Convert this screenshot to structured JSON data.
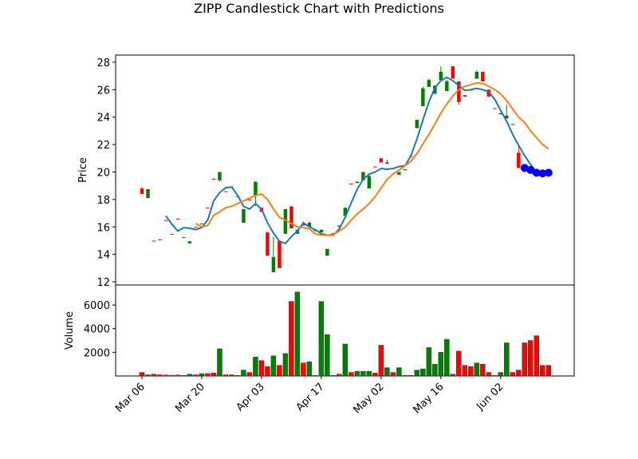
{
  "chart_data": {
    "type": "candlestick",
    "title": "ZIPP Candlestick Chart with Predictions",
    "ylabel": "Price",
    "volume_ylabel": "Volume",
    "categories": [
      "Mar 06",
      null,
      null,
      null,
      null,
      null,
      null,
      null,
      null,
      null,
      "Mar 20",
      null,
      null,
      null,
      null,
      null,
      null,
      null,
      null,
      null,
      "Apr 03",
      null,
      null,
      null,
      null,
      null,
      null,
      null,
      null,
      null,
      "Apr 17",
      null,
      null,
      null,
      null,
      null,
      null,
      null,
      null,
      null,
      "May 02",
      null,
      null,
      null,
      null,
      null,
      null,
      null,
      null,
      null,
      "May 16",
      null,
      null,
      null,
      null,
      null,
      null,
      null,
      null,
      null,
      "Jun 02",
      null,
      null,
      null,
      null,
      null,
      null,
      null,
      null
    ],
    "open": [
      18.8,
      18.1,
      15.0,
      15.1,
      16.5,
      15.5,
      16.6,
      15.2,
      14.8,
      16.0,
      16.2,
      17.4,
      19.5,
      19.4,
      18.6,
      18.9,
      18.2,
      16.3,
      18.0,
      18.3,
      17.4,
      15.6,
      12.7,
      15.0,
      15.5,
      17.5,
      15.5,
      16.2,
      16.0,
      15.7,
      15.6,
      13.9,
      15.5,
      16.1,
      16.8,
      19.15,
      19.2,
      19.4,
      18.8,
      20.4,
      21.0,
      20.6,
      20.3,
      19.8,
      20.2,
      21.15,
      23.2,
      24.8,
      26.2,
      25.7,
      26.7,
      25.9,
      27.7,
      26.6,
      25.6,
      26.0,
      26.8,
      27.3,
      26.0,
      24.65,
      24.2,
      23.9,
      23.5,
      21.4,
      null,
      null,
      null,
      null,
      null
    ],
    "high": [
      18.9,
      18.75,
      15.0,
      15.1,
      16.5,
      15.5,
      16.6,
      15.25,
      14.95,
      16.0,
      16.25,
      17.4,
      19.55,
      20.0,
      18.6,
      18.95,
      18.25,
      17.3,
      18.0,
      19.3,
      17.4,
      15.6,
      15.3,
      15.0,
      17.3,
      17.5,
      15.8,
      16.4,
      16.4,
      15.8,
      15.8,
      14.4,
      15.55,
      16.1,
      17.4,
      19.15,
      19.3,
      20.0,
      19.9,
      20.4,
      21.0,
      20.9,
      20.3,
      20.0,
      20.2,
      21.15,
      23.8,
      26.2,
      26.8,
      26.3,
      27.7,
      26.7,
      27.7,
      26.6,
      25.6,
      26.0,
      27.4,
      27.3,
      26.0,
      24.65,
      24.3,
      24.9,
      23.5,
      21.9,
      null,
      null,
      null,
      null,
      null
    ],
    "low": [
      18.4,
      18.1,
      14.95,
      15.05,
      16.45,
      15.45,
      16.55,
      15.2,
      14.8,
      15.95,
      16.2,
      17.35,
      19.45,
      19.3,
      18.55,
      18.9,
      18.2,
      16.3,
      17.95,
      17.5,
      17.1,
      13.9,
      12.7,
      13.0,
      15.5,
      15.9,
      15.5,
      16.1,
      16.0,
      15.7,
      15.6,
      13.9,
      15.5,
      16.0,
      16.8,
      19.1,
      19.2,
      19.4,
      18.8,
      20.35,
      20.7,
      20.6,
      20.25,
      19.8,
      20.15,
      21.1,
      23.2,
      24.8,
      26.2,
      25.7,
      26.7,
      25.9,
      26.8,
      24.9,
      25.5,
      25.95,
      26.8,
      26.6,
      25.5,
      24.6,
      24.2,
      23.9,
      23.45,
      20.3,
      null,
      null,
      null,
      null,
      null
    ],
    "close": [
      18.4,
      18.75,
      14.95,
      15.05,
      16.45,
      15.45,
      16.55,
      15.25,
      14.95,
      15.95,
      16.25,
      17.35,
      19.45,
      20.0,
      18.55,
      18.95,
      18.25,
      17.3,
      17.95,
      19.3,
      17.1,
      13.9,
      13.8,
      13.0,
      17.3,
      15.9,
      15.8,
      16.1,
      16.3,
      15.8,
      15.8,
      14.4,
      15.55,
      16.0,
      17.4,
      19.1,
      19.3,
      20.0,
      19.7,
      20.35,
      20.7,
      20.7,
      20.25,
      20.0,
      20.15,
      21.1,
      23.8,
      26.1,
      26.7,
      26.3,
      27.3,
      26.6,
      26.8,
      25.1,
      25.5,
      25.95,
      27.3,
      26.6,
      25.5,
      24.6,
      24.3,
      24.1,
      23.45,
      20.3,
      null,
      null,
      null,
      null,
      null
    ],
    "volume": [
      300,
      100,
      150,
      100,
      80,
      60,
      80,
      50,
      150,
      100,
      200,
      200,
      250,
      2300,
      100,
      100,
      50,
      500,
      300,
      1600,
      1300,
      800,
      1700,
      900,
      1900,
      6300,
      7100,
      1100,
      1200,
      50,
      6300,
      3500,
      50,
      150,
      2700,
      300,
      400,
      400,
      400,
      250,
      2600,
      700,
      300,
      700,
      50,
      50,
      500,
      600,
      2400,
      1000,
      2000,
      3100,
      150,
      2100,
      900,
      800,
      1100,
      1000,
      300,
      50,
      300,
      2800,
      300,
      500,
      2800,
      3000,
      3400,
      900,
      900
    ],
    "up_color": "#008000",
    "down_color": "#ff0000",
    "moving_averages": [
      {
        "color": "#1f77b4",
        "values": [
          null,
          null,
          null,
          null,
          16.8,
          16.2,
          15.7,
          15.95,
          15.9,
          15.8,
          15.95,
          16.5,
          17.9,
          18.5,
          18.85,
          18.9,
          18.3,
          17.5,
          17.3,
          17.7,
          17.3,
          16.3,
          15.55,
          14.95,
          14.8,
          15.3,
          15.7,
          16.3,
          16.0,
          15.8,
          15.5,
          15.4,
          15.4,
          15.85,
          16.7,
          17.75,
          18.75,
          19.45,
          19.85,
          20.0,
          20.25,
          20.2,
          20.25,
          20.4,
          20.45,
          21.2,
          22.4,
          23.8,
          25.1,
          26.15,
          26.65,
          26.9,
          26.65,
          26.3,
          25.95,
          26.0,
          26.1,
          26.0,
          25.85,
          25.3,
          24.5,
          23.7,
          22.75,
          21.95,
          21.2,
          20.55,
          20.0,
          19.9,
          19.9
        ]
      },
      {
        "color": "#ff7f0e",
        "values": [
          null,
          null,
          null,
          null,
          null,
          null,
          null,
          null,
          null,
          16.25,
          16.0,
          16.1,
          16.85,
          17.1,
          17.4,
          17.5,
          17.7,
          17.9,
          18.1,
          18.3,
          18.4,
          18.0,
          17.3,
          16.7,
          16.5,
          16.25,
          16.0,
          15.95,
          15.85,
          15.5,
          15.4,
          15.4,
          15.45,
          15.7,
          16.0,
          16.5,
          16.95,
          17.3,
          17.7,
          18.2,
          18.85,
          19.45,
          19.85,
          20.15,
          20.45,
          20.8,
          21.35,
          22.05,
          22.75,
          23.5,
          24.3,
          24.95,
          25.55,
          26.0,
          26.25,
          26.35,
          26.5,
          26.45,
          26.25,
          26.0,
          25.7,
          25.2,
          24.6,
          24.0,
          23.6,
          23.0,
          22.5,
          22.0,
          21.7
        ]
      }
    ],
    "predictions": {
      "color": "#0000ff",
      "values": [
        null,
        null,
        null,
        null,
        null,
        null,
        null,
        null,
        null,
        null,
        null,
        null,
        null,
        null,
        null,
        null,
        null,
        null,
        null,
        null,
        null,
        null,
        null,
        null,
        null,
        null,
        null,
        null,
        null,
        null,
        null,
        null,
        null,
        null,
        null,
        null,
        null,
        null,
        null,
        null,
        null,
        null,
        null,
        null,
        null,
        null,
        null,
        null,
        null,
        null,
        null,
        null,
        null,
        null,
        null,
        null,
        null,
        null,
        null,
        null,
        null,
        null,
        null,
        null,
        20.3,
        20.15,
        19.95,
        19.9,
        19.95
      ]
    },
    "xlim": [
      -4.4,
      72.3
    ],
    "ylim": [
      11.77,
      28.52
    ],
    "yticks": [
      12,
      14,
      16,
      18,
      20,
      22,
      24,
      26,
      28
    ],
    "volume_ylim": [
      0,
      7690
    ],
    "volume_yticks": [
      2000,
      4000,
      6000
    ]
  }
}
